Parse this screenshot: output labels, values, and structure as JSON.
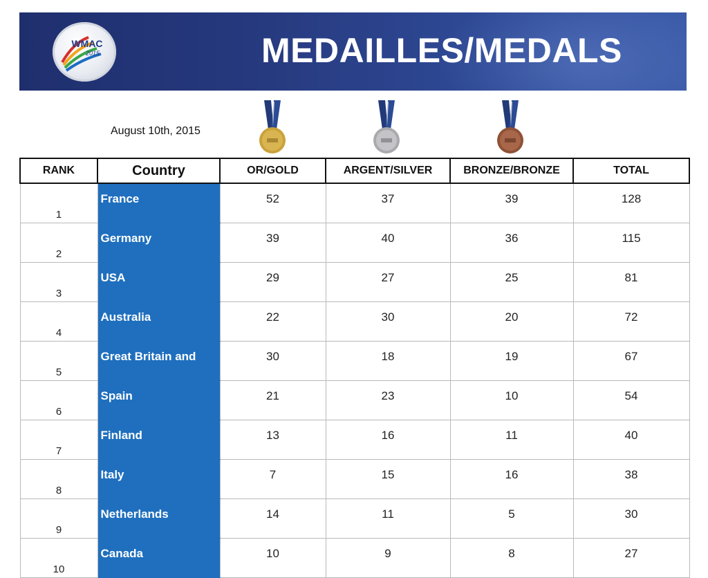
{
  "header": {
    "logo_text": "WMAC 2015",
    "title": "MEDAILLES/MEDALS"
  },
  "date": "August 10th, 2015",
  "medal_icons": [
    "gold-medal-icon",
    "silver-medal-icon",
    "bronze-medal-icon"
  ],
  "colors": {
    "banner": "#26397e",
    "country_cell": "#1f6fbe",
    "gold": "#c9a23a",
    "silver": "#b8b8bc",
    "bronze": "#9a5a3e"
  },
  "table": {
    "headers": {
      "rank": "RANK",
      "country": "Country",
      "gold": "OR/GOLD",
      "silver": "ARGENT/SILVER",
      "bronze": "BRONZE/BRONZE",
      "total": "TOTAL"
    },
    "rows": [
      {
        "rank": "1",
        "country": "France",
        "gold": "52",
        "silver": "37",
        "bronze": "39",
        "total": "128"
      },
      {
        "rank": "2",
        "country": "Germany",
        "gold": "39",
        "silver": "40",
        "bronze": "36",
        "total": "115"
      },
      {
        "rank": "3",
        "country": "USA",
        "gold": "29",
        "silver": "27",
        "bronze": "25",
        "total": "81"
      },
      {
        "rank": "4",
        "country": "Australia",
        "gold": "22",
        "silver": "30",
        "bronze": "20",
        "total": "72"
      },
      {
        "rank": "5",
        "country": "Great Britain and",
        "gold": "30",
        "silver": "18",
        "bronze": "19",
        "total": "67"
      },
      {
        "rank": "6",
        "country": "Spain",
        "gold": "21",
        "silver": "23",
        "bronze": "10",
        "total": "54"
      },
      {
        "rank": "7",
        "country": "Finland",
        "gold": "13",
        "silver": "16",
        "bronze": "11",
        "total": "40"
      },
      {
        "rank": "8",
        "country": "Italy",
        "gold": "7",
        "silver": "15",
        "bronze": "16",
        "total": "38"
      },
      {
        "rank": "9",
        "country": "Netherlands",
        "gold": "14",
        "silver": "11",
        "bronze": "5",
        "total": "30"
      },
      {
        "rank": "10",
        "country": "Canada",
        "gold": "10",
        "silver": "9",
        "bronze": "8",
        "total": "27"
      }
    ]
  }
}
